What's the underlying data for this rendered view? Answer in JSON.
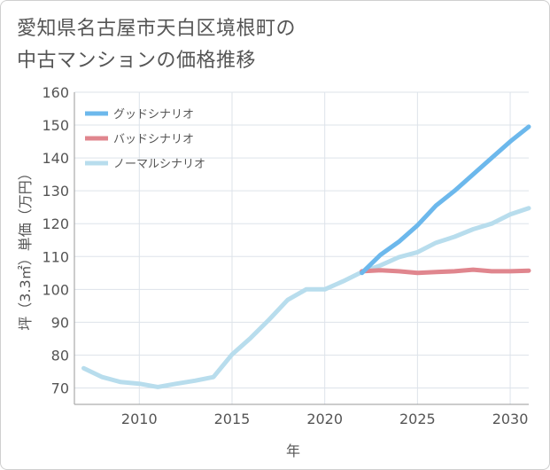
{
  "title_lines": [
    "愛知県名古屋市天白区境根町の",
    "中古マンションの価格推移"
  ],
  "chart_data": {
    "type": "line",
    "title": "愛知県名古屋市天白区境根町の中古マンションの価格推移",
    "xlabel": "年",
    "ylabel": "坪（3.3㎡）単価（万円）",
    "xlim": [
      2006.5,
      2031
    ],
    "ylim": [
      65,
      160
    ],
    "xticks": [
      2010,
      2015,
      2020,
      2025,
      2030
    ],
    "yticks": [
      70,
      80,
      90,
      100,
      110,
      120,
      130,
      140,
      150,
      160
    ],
    "grid": true,
    "legend_position": "top-left",
    "series": [
      {
        "name": "グッドシナリオ",
        "color": "#6cb8ec",
        "x": [
          2022,
          2023,
          2024,
          2025,
          2026,
          2027,
          2028,
          2029,
          2030,
          2031
        ],
        "values": [
          105,
          110.5,
          114.5,
          119.5,
          125.5,
          130,
          135,
          140,
          145,
          149.5
        ]
      },
      {
        "name": "バッドシナリオ",
        "color": "#e0868e",
        "x": [
          2022,
          2023,
          2024,
          2025,
          2026,
          2027,
          2028,
          2029,
          2030,
          2031
        ],
        "values": [
          105.5,
          105.8,
          105.5,
          105,
          105.3,
          105.5,
          106,
          105.5,
          105.5,
          105.7
        ]
      },
      {
        "name": "ノーマルシナリオ",
        "color": "#b8dded",
        "x": [
          2007,
          2008,
          2009,
          2010,
          2011,
          2012,
          2013,
          2014,
          2015,
          2016,
          2017,
          2018,
          2019,
          2020,
          2021,
          2022,
          2023,
          2024,
          2025,
          2026,
          2027,
          2028,
          2029,
          2030,
          2031
        ],
        "values": [
          76,
          73.3,
          71.8,
          71.3,
          70.3,
          71.3,
          72.2,
          73.3,
          80.2,
          85.2,
          90.8,
          96.8,
          100,
          100,
          102.5,
          105.3,
          107.3,
          109.8,
          111.3,
          114.2,
          116,
          118.3,
          120,
          122.8,
          124.7
        ]
      }
    ]
  }
}
